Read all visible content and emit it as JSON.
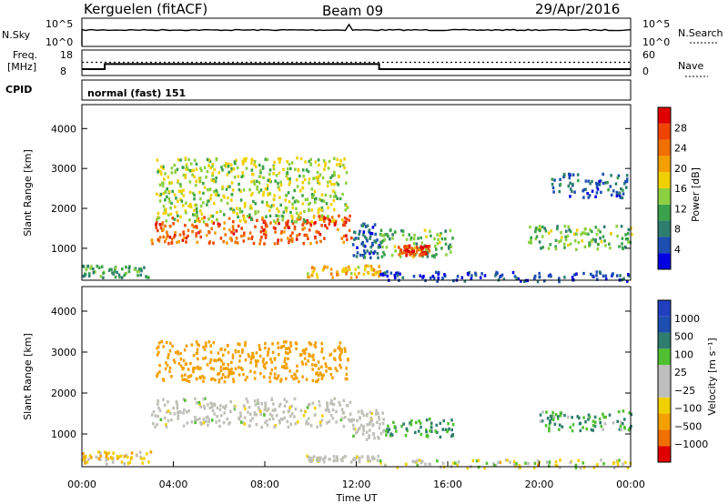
{
  "header": {
    "station": "Kerguelen (fitACF)",
    "beam": "Beam 09",
    "date": "29/Apr/2016"
  },
  "nsky_panel": {
    "left_label": "N.Sky",
    "left_ticks": [
      "10^5",
      "10^0"
    ],
    "right_label": "N.Search",
    "right_ticks": [
      "10^5",
      "10^0"
    ]
  },
  "freq_panel": {
    "left_label_1": "Freq.",
    "left_label_2": "[MHz]",
    "left_ticks": [
      "18",
      "8"
    ],
    "right_label": "Nave",
    "right_ticks": [
      "60",
      "0"
    ]
  },
  "cpid": {
    "label": "CPID",
    "value": "normal (fast) 151"
  },
  "colors": {
    "power_scale": [
      "#0000e0",
      "#1c4fb0",
      "#2e7d6e",
      "#3aa24a",
      "#8cd040",
      "#f0d000",
      "#f4a000",
      "#f07000",
      "#ee4400",
      "#e00000"
    ],
    "velocity_scale": [
      "#e00000",
      "#f07000",
      "#f4a000",
      "#f0d000",
      "#bebebe",
      "#bebebe",
      "#50c030",
      "#2e7d6e",
      "#1c4fb0",
      "#2040c0"
    ],
    "ground_scatter": "#c0c0b8"
  },
  "chart_data": [
    {
      "type": "heatmap",
      "name": "power-panel",
      "ylabel": "Slant Range [km]",
      "xlim": [
        0,
        24
      ],
      "ylim": [
        200,
        4600
      ],
      "yticks": [
        "4000",
        "3000",
        "2000",
        "1000"
      ],
      "colorbar": {
        "label": "Power [dB]",
        "ticks": [
          "28",
          "24",
          "20",
          "16",
          "12",
          "8",
          "4"
        ],
        "range": [
          0,
          30
        ]
      },
      "regions": [
        {
          "t": [
            3.0,
            11.8
          ],
          "r": [
            1150,
            1850
          ],
          "value": 24
        },
        {
          "t": [
            3.2,
            11.6
          ],
          "r": [
            1700,
            3300
          ],
          "value": 14
        },
        {
          "t": [
            11.8,
            13.0
          ],
          "r": [
            800,
            1650
          ],
          "value": 6
        },
        {
          "t": [
            13.0,
            16.2
          ],
          "r": [
            800,
            1500
          ],
          "value": 12
        },
        {
          "t": [
            13.8,
            15.2
          ],
          "r": [
            850,
            1100
          ],
          "value": 26
        },
        {
          "t": [
            0.0,
            3.0
          ],
          "r": [
            300,
            600
          ],
          "value": 10
        },
        {
          "t": [
            9.8,
            13.0
          ],
          "r": [
            300,
            600
          ],
          "value": 18
        },
        {
          "t": [
            19.5,
            24.0
          ],
          "r": [
            1000,
            1600
          ],
          "value": 12
        },
        {
          "t": [
            20.5,
            23.8
          ],
          "r": [
            2300,
            2900
          ],
          "value": 6
        },
        {
          "t": [
            13.0,
            24.0
          ],
          "r": [
            200,
            450
          ],
          "value": 4
        }
      ]
    },
    {
      "type": "heatmap",
      "name": "velocity-panel",
      "ylabel": "Slant Range [km]",
      "xlabel": "Time UT",
      "xlim": [
        0,
        24
      ],
      "ylim": [
        200,
        4600
      ],
      "xticks": [
        "00:00",
        "04:00",
        "08:00",
        "12:00",
        "16:00",
        "20:00",
        "00:00"
      ],
      "yticks": [
        "4000",
        "3000",
        "2000",
        "1000"
      ],
      "colorbar": {
        "label": "Velocity [m s⁻¹]",
        "ticks": [
          "1000",
          "500",
          "100",
          "25",
          "−25",
          "−100",
          "−500",
          "−1000"
        ]
      },
      "regions": [
        {
          "t": [
            3.0,
            11.8
          ],
          "r": [
            1200,
            1900
          ],
          "value": 0
        },
        {
          "t": [
            3.2,
            11.6
          ],
          "r": [
            2300,
            3300
          ],
          "value": -200
        },
        {
          "t": [
            11.8,
            13.2
          ],
          "r": [
            900,
            1650
          ],
          "value": 0
        },
        {
          "t": [
            13.2,
            16.2
          ],
          "r": [
            950,
            1400
          ],
          "value": 120
        },
        {
          "t": [
            9.8,
            13.0
          ],
          "r": [
            350,
            500
          ],
          "value": 0
        },
        {
          "t": [
            0.0,
            3.0
          ],
          "r": [
            300,
            600
          ],
          "value": -60
        },
        {
          "t": [
            20.0,
            24.0
          ],
          "r": [
            1100,
            1600
          ],
          "value": 80
        },
        {
          "t": [
            13.0,
            24.0
          ],
          "r": [
            200,
            400
          ],
          "value": -30
        }
      ]
    }
  ],
  "freq_series": {
    "ylim": [
      8,
      18
    ],
    "freq_mhz": [
      [
        0,
        10.5
      ],
      [
        1.0,
        10.5
      ],
      [
        1.0,
        12.5
      ],
      [
        13.0,
        12.5
      ],
      [
        13.0,
        10.5
      ],
      [
        24,
        10.5
      ]
    ],
    "nave_ylim": [
      0,
      60
    ],
    "nave": 31
  }
}
